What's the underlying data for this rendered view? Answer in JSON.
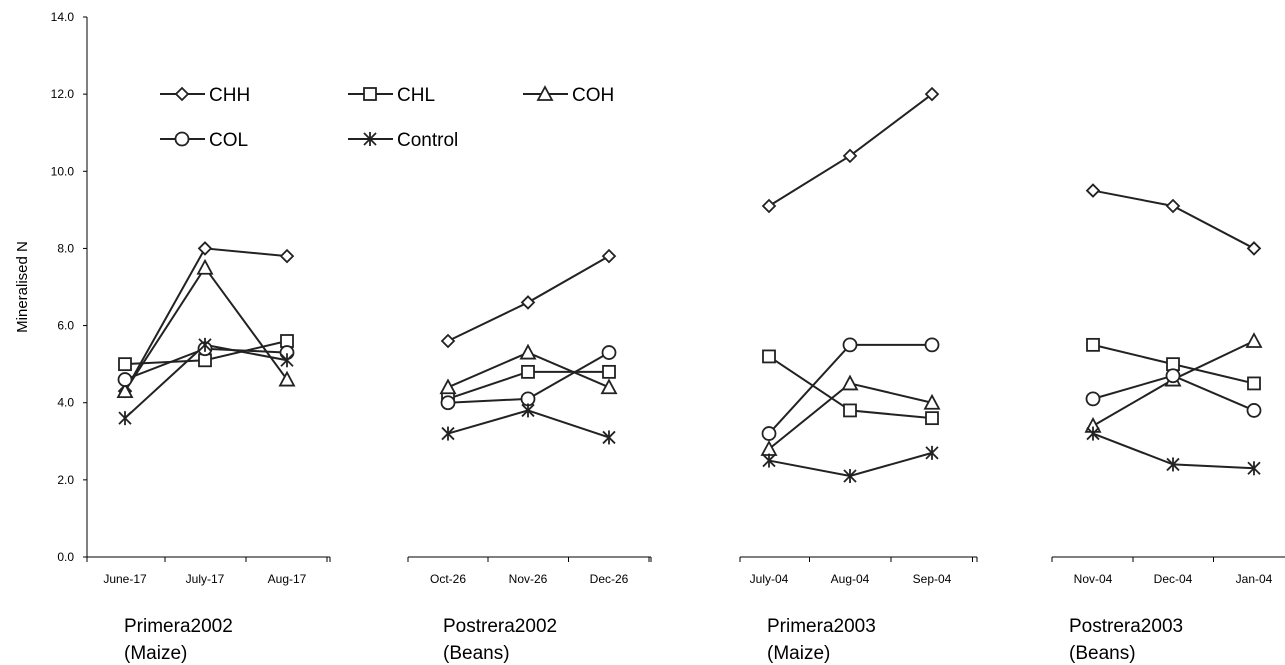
{
  "chart_data": {
    "type": "line",
    "ylabel": "Mineralised N",
    "ylim": [
      0,
      14
    ],
    "yticks": [
      "0.0",
      "2.0",
      "4.0",
      "6.0",
      "8.0",
      "10.0",
      "12.0",
      "14.0"
    ],
    "legend": {
      "placement": "top-left",
      "entries": [
        {
          "name": "CHH",
          "marker": "diamond"
        },
        {
          "name": "CHL",
          "marker": "square"
        },
        {
          "name": "COH",
          "marker": "triangle"
        },
        {
          "name": "COL",
          "marker": "circle"
        },
        {
          "name": "Control",
          "marker": "asterisk"
        }
      ]
    },
    "panels": [
      {
        "name": "Primera2002",
        "crop": "(Maize)",
        "categories": [
          "June-17",
          "July-17",
          "Aug-17"
        ],
        "series": [
          {
            "name": "CHH",
            "values": [
              4.3,
              8.0,
              7.8
            ]
          },
          {
            "name": "CHL",
            "values": [
              5.0,
              5.1,
              5.6
            ]
          },
          {
            "name": "COH",
            "values": [
              4.3,
              7.5,
              4.6
            ]
          },
          {
            "name": "COL",
            "values": [
              4.6,
              5.4,
              5.3
            ]
          },
          {
            "name": "Control",
            "values": [
              3.6,
              5.5,
              5.1
            ]
          }
        ]
      },
      {
        "name": "Postrera2002",
        "crop": "(Beans)",
        "categories": [
          "Oct-26",
          "Nov-26",
          "Dec-26"
        ],
        "series": [
          {
            "name": "CHH",
            "values": [
              5.6,
              6.6,
              7.8
            ]
          },
          {
            "name": "CHL",
            "values": [
              4.1,
              4.8,
              4.8
            ]
          },
          {
            "name": "COH",
            "values": [
              4.4,
              5.3,
              4.4
            ]
          },
          {
            "name": "COL",
            "values": [
              4.0,
              4.1,
              5.3
            ]
          },
          {
            "name": "Control",
            "values": [
              3.2,
              3.8,
              3.1
            ]
          }
        ]
      },
      {
        "name": "Primera2003",
        "crop": "(Maize)",
        "categories": [
          "July-04",
          "Aug-04",
          "Sep-04"
        ],
        "series": [
          {
            "name": "CHH",
            "values": [
              9.1,
              10.4,
              12.0
            ]
          },
          {
            "name": "CHL",
            "values": [
              5.2,
              3.8,
              3.6
            ]
          },
          {
            "name": "COH",
            "values": [
              2.8,
              4.5,
              4.0
            ]
          },
          {
            "name": "COL",
            "values": [
              3.2,
              5.5,
              5.5
            ]
          },
          {
            "name": "Control",
            "values": [
              2.5,
              2.1,
              2.7
            ]
          }
        ]
      },
      {
        "name": "Postrera2003",
        "crop": "(Beans)",
        "categories": [
          "Nov-04",
          "Dec-04",
          "Jan-04"
        ],
        "series": [
          {
            "name": "CHH",
            "values": [
              9.5,
              9.1,
              8.0
            ]
          },
          {
            "name": "CHL",
            "values": [
              5.5,
              5.0,
              4.5
            ]
          },
          {
            "name": "COH",
            "values": [
              3.4,
              4.6,
              5.6
            ]
          },
          {
            "name": "COL",
            "values": [
              4.1,
              4.7,
              3.8
            ]
          },
          {
            "name": "Control",
            "values": [
              3.2,
              2.4,
              2.3
            ]
          }
        ]
      }
    ],
    "grid": false,
    "colors": {
      "line": "#222222",
      "marker_fill": "#ffffff",
      "axis": "#000000"
    }
  }
}
